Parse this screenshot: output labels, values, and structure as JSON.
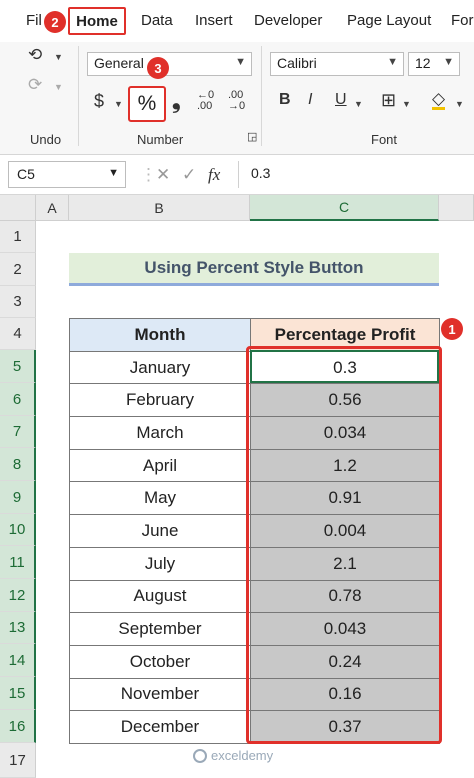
{
  "ribbon_tabs": [
    "Fil",
    "Home",
    "Data",
    "Insert",
    "Developer",
    "Page Layout",
    "For"
  ],
  "markers": [
    "1",
    "2",
    "3"
  ],
  "ribbon": {
    "undo_group_label": "Undo",
    "number_group_label": "Number",
    "font_group_label": "Font",
    "number_format": "General",
    "font_name": "Calibri",
    "font_size": "12",
    "currency_symbol": "$",
    "percent_symbol": "%",
    "comma_symbol": "❟",
    "bold": "B",
    "italic": "I",
    "underline": "U"
  },
  "formula_bar": {
    "name_box": "C5",
    "fx": "fx",
    "value": "0.3"
  },
  "columns": [
    "A",
    "B",
    "C"
  ],
  "rows": [
    "1",
    "2",
    "3",
    "4",
    "5",
    "6",
    "7",
    "8",
    "9",
    "10",
    "11",
    "12",
    "13",
    "14",
    "15",
    "16",
    "17"
  ],
  "sheet": {
    "title": "Using Percent Style Button",
    "headers": [
      "Month",
      "Percentage Profit"
    ],
    "records": [
      {
        "month": "January",
        "profit": "0.3"
      },
      {
        "month": "February",
        "profit": "0.56"
      },
      {
        "month": "March",
        "profit": "0.034"
      },
      {
        "month": "April",
        "profit": "1.2"
      },
      {
        "month": "May",
        "profit": "0.91"
      },
      {
        "month": "June",
        "profit": "0.004"
      },
      {
        "month": "July",
        "profit": "2.1"
      },
      {
        "month": "August",
        "profit": "0.78"
      },
      {
        "month": "September",
        "profit": "0.043"
      },
      {
        "month": "October",
        "profit": "0.24"
      },
      {
        "month": "November",
        "profit": "0.16"
      },
      {
        "month": "December",
        "profit": "0.37"
      }
    ]
  },
  "watermark": "exceldemy",
  "colors": {
    "accent_red": "#e0302a",
    "excel_green": "#217346",
    "title_fill": "#e2efda",
    "selected_fill": "#c8c8c8"
  }
}
